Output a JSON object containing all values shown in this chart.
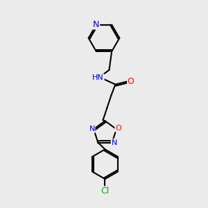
{
  "bg_color": "#ebebeb",
  "line_color": "#000000",
  "bond_width": 1.5,
  "atom_colors": {
    "N": "#0000cc",
    "O": "#ff0000",
    "Cl": "#00aa00",
    "C": "#000000"
  },
  "font_size": 8.0
}
